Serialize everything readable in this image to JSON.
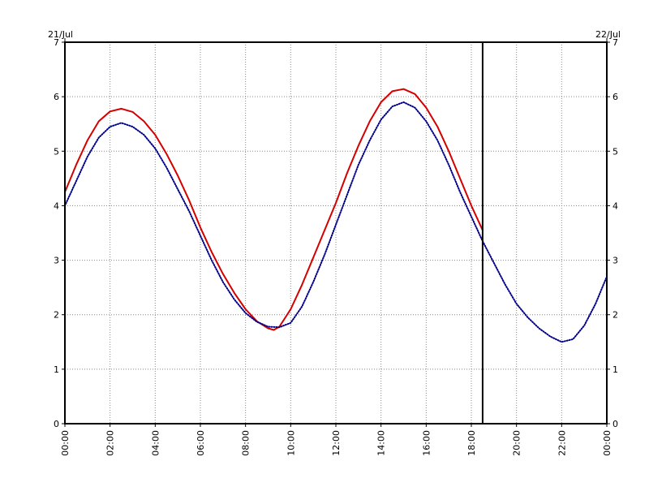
{
  "chart_data": {
    "type": "line",
    "title": "",
    "xlabel": "",
    "ylabel": "",
    "date_labels": {
      "start": "21/Jul",
      "end": "22/Jul"
    },
    "x_ticks": [
      "00:00",
      "02:00",
      "04:00",
      "06:00",
      "08:00",
      "10:00",
      "12:00",
      "14:00",
      "16:00",
      "18:00",
      "20:00",
      "22:00",
      "00:00"
    ],
    "xlim_hours": [
      0,
      24
    ],
    "ylim": [
      0,
      7
    ],
    "y_ticks": [
      0,
      1,
      2,
      3,
      4,
      5,
      6,
      7
    ],
    "grid": true,
    "current_time_marker_hours": 18.5,
    "series": [
      {
        "color": "#d40000",
        "style": "solid",
        "x_hours": [
          0,
          0.5,
          1,
          1.5,
          2,
          2.5,
          3,
          3.5,
          4,
          4.5,
          5,
          5.5,
          6,
          6.5,
          7,
          7.5,
          8,
          8.5,
          9,
          9.25,
          9.5,
          10,
          10.5,
          11,
          11.5,
          12,
          12.5,
          13,
          13.5,
          14,
          14.5,
          15,
          15.5,
          16,
          16.5,
          17,
          17.5,
          18,
          18.5
        ],
        "values": [
          4.25,
          4.75,
          5.2,
          5.55,
          5.73,
          5.78,
          5.72,
          5.55,
          5.3,
          4.95,
          4.55,
          4.1,
          3.6,
          3.15,
          2.75,
          2.4,
          2.1,
          1.88,
          1.75,
          1.72,
          1.78,
          2.1,
          2.55,
          3.05,
          3.55,
          4.05,
          4.6,
          5.1,
          5.55,
          5.9,
          6.1,
          6.14,
          6.05,
          5.8,
          5.45,
          5.0,
          4.5,
          4.0,
          3.55
        ]
      },
      {
        "color": "#00008b",
        "style": "dotted",
        "x_hours": [
          0,
          0.5,
          1,
          1.5,
          2,
          2.5,
          3,
          3.5,
          4,
          4.5,
          5,
          5.5,
          6,
          6.5,
          7,
          7.5,
          8,
          8.5,
          9,
          9.5,
          10,
          10.5,
          11,
          11.5,
          12,
          12.5,
          13,
          13.5,
          14,
          14.5,
          15,
          15.5,
          16,
          16.5,
          17,
          17.5,
          18,
          18.5,
          19,
          19.5,
          20,
          20.5,
          21,
          21.5,
          22,
          22.5,
          23,
          23.5,
          24
        ],
        "values": [
          4.0,
          4.45,
          4.9,
          5.25,
          5.45,
          5.52,
          5.45,
          5.3,
          5.05,
          4.7,
          4.3,
          3.9,
          3.45,
          3.0,
          2.6,
          2.28,
          2.03,
          1.87,
          1.78,
          1.77,
          1.85,
          2.15,
          2.6,
          3.1,
          3.65,
          4.2,
          4.75,
          5.2,
          5.58,
          5.82,
          5.9,
          5.8,
          5.55,
          5.2,
          4.75,
          4.25,
          3.8,
          3.35,
          2.95,
          2.55,
          2.2,
          1.95,
          1.75,
          1.6,
          1.5,
          1.55,
          1.8,
          2.2,
          2.7
        ]
      }
    ]
  }
}
